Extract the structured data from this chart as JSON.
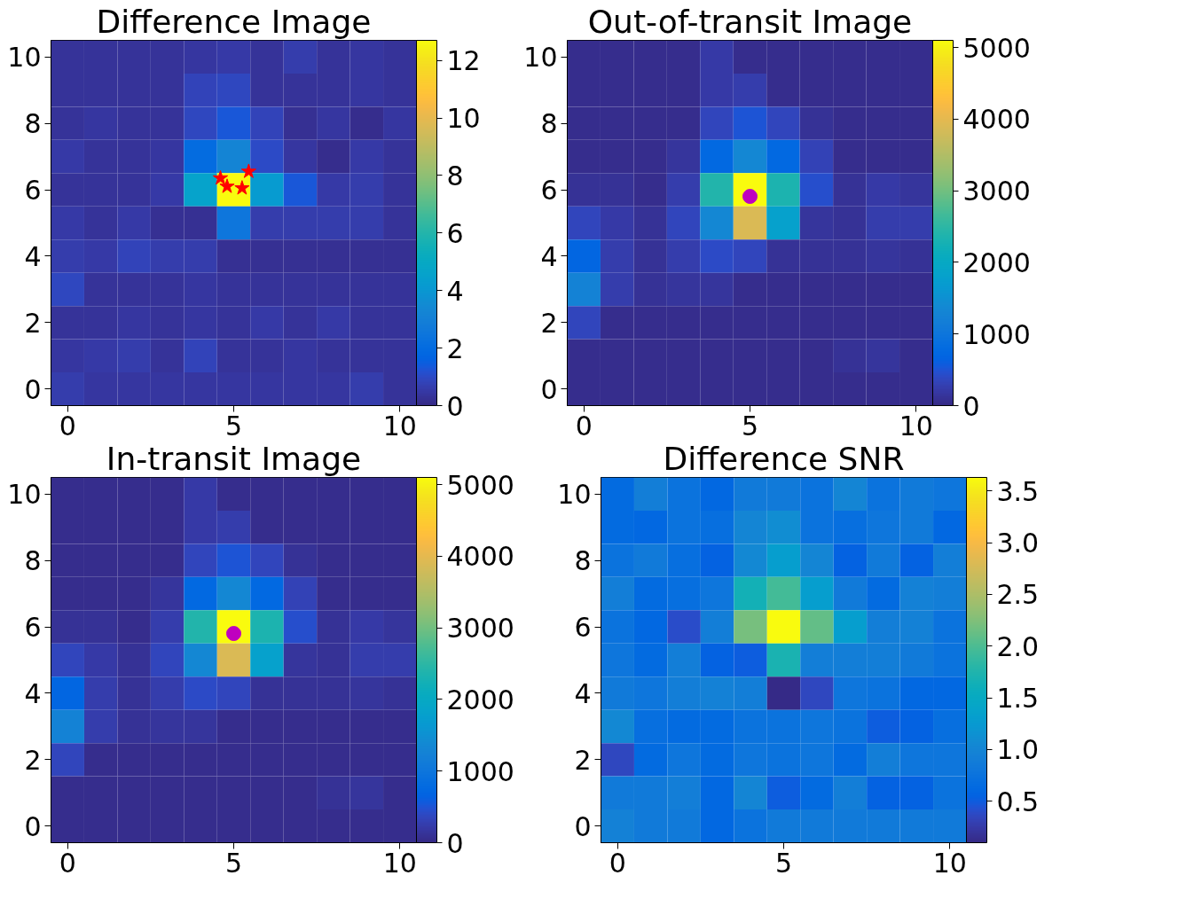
{
  "chart_data": [
    {
      "type": "heatmap",
      "title": "Difference Image",
      "xlim": [
        -0.5,
        10.5
      ],
      "xticks": [
        0,
        5,
        10
      ],
      "ylim": [
        -0.5,
        10.5
      ],
      "yticks": [
        0,
        2,
        4,
        6,
        8,
        10
      ],
      "clim": [
        0,
        12.7
      ],
      "cticks": [
        0,
        2,
        4,
        6,
        8,
        10,
        12
      ],
      "cells": [
        [
          0.3,
          0.3,
          0.3,
          0.3,
          0.4,
          0.5,
          0.3,
          0.6,
          0.3,
          0.4,
          0.3
        ],
        [
          0.3,
          0.3,
          0.3,
          0.3,
          0.8,
          0.9,
          0.3,
          0.3,
          0.3,
          0.4,
          0.3
        ],
        [
          0.3,
          0.4,
          0.3,
          0.3,
          0.9,
          1.3,
          0.8,
          0.2,
          0.4,
          0.1,
          0.4
        ],
        [
          0.5,
          0.3,
          0.3,
          0.4,
          2.0,
          3.2,
          1.0,
          0.4,
          0.1,
          0.5,
          0.3
        ],
        [
          0.3,
          0.3,
          0.3,
          0.5,
          4.6,
          12.7,
          4.2,
          1.3,
          0.5,
          0.6,
          0.3
        ],
        [
          0.5,
          0.3,
          0.5,
          0.2,
          0.2,
          2.5,
          0.6,
          0.6,
          0.6,
          0.6,
          0.3
        ],
        [
          0.6,
          0.5,
          0.8,
          0.6,
          0.6,
          0.2,
          0.2,
          0.2,
          0.2,
          0.2,
          0.2
        ],
        [
          0.9,
          0.3,
          0.3,
          0.3,
          0.4,
          0.3,
          0.3,
          0.3,
          0.3,
          0.3,
          0.3
        ],
        [
          0.3,
          0.3,
          0.4,
          0.3,
          0.4,
          0.3,
          0.5,
          0.3,
          0.5,
          0.3,
          0.3
        ],
        [
          0.4,
          0.5,
          0.6,
          0.3,
          0.8,
          0.3,
          0.3,
          0.4,
          0.3,
          0.3,
          0.3
        ],
        [
          0.6,
          0.4,
          0.4,
          0.4,
          0.4,
          0.4,
          0.4,
          0.4,
          0.4,
          0.6,
          0.3
        ]
      ],
      "series": [
        {
          "type": "scatter",
          "color": "#ff0000",
          "marker": "star",
          "x": [
            4.6,
            4.8,
            5.25,
            5.45
          ],
          "values": [
            6.35,
            6.1,
            6.05,
            6.55
          ]
        }
      ]
    },
    {
      "type": "heatmap",
      "title": "Out-of-transit Image",
      "xlim": [
        -0.5,
        10.5
      ],
      "xticks": [
        0,
        5,
        10
      ],
      "ylim": [
        -0.5,
        10.5
      ],
      "yticks": [
        0,
        2,
        4,
        6,
        8,
        10
      ],
      "clim": [
        0,
        5100
      ],
      "cticks": [
        0,
        1000,
        2000,
        3000,
        4000,
        5000
      ],
      "cells": [
        [
          50,
          50,
          50,
          50,
          200,
          50,
          50,
          50,
          50,
          50,
          50
        ],
        [
          50,
          50,
          50,
          50,
          200,
          250,
          50,
          50,
          50,
          50,
          50
        ],
        [
          50,
          50,
          50,
          50,
          350,
          500,
          350,
          100,
          50,
          50,
          50
        ],
        [
          50,
          50,
          50,
          150,
          750,
          1350,
          750,
          300,
          50,
          50,
          50
        ],
        [
          100,
          100,
          50,
          250,
          2400,
          5100,
          2350,
          450,
          100,
          200,
          150
        ],
        [
          350,
          200,
          100,
          350,
          1350,
          3900,
          1800,
          150,
          100,
          250,
          250
        ],
        [
          700,
          250,
          100,
          250,
          400,
          350,
          100,
          100,
          100,
          150,
          100
        ],
        [
          1250,
          250,
          100,
          150,
          150,
          50,
          50,
          50,
          50,
          50,
          50
        ],
        [
          350,
          50,
          50,
          50,
          50,
          50,
          50,
          50,
          50,
          50,
          50
        ],
        [
          50,
          50,
          50,
          50,
          50,
          50,
          50,
          50,
          100,
          150,
          50
        ],
        [
          50,
          50,
          50,
          50,
          50,
          50,
          50,
          50,
          50,
          50,
          50
        ]
      ],
      "series": [
        {
          "type": "scatter",
          "color": "#bf00bf",
          "marker": "circle",
          "x": [
            5.0
          ],
          "values": [
            5.8
          ]
        }
      ]
    },
    {
      "type": "heatmap",
      "title": "In-transit Image",
      "xlim": [
        -0.5,
        10.5
      ],
      "xticks": [
        0,
        5,
        10
      ],
      "ylim": [
        -0.5,
        10.5
      ],
      "yticks": [
        0,
        2,
        4,
        6,
        8,
        10
      ],
      "clim": [
        0,
        5100
      ],
      "cticks": [
        0,
        1000,
        2000,
        3000,
        4000,
        5000
      ],
      "cells": [
        [
          50,
          50,
          50,
          50,
          200,
          50,
          50,
          50,
          50,
          50,
          50
        ],
        [
          50,
          50,
          50,
          50,
          200,
          250,
          50,
          50,
          50,
          50,
          50
        ],
        [
          50,
          50,
          50,
          50,
          350,
          500,
          350,
          100,
          50,
          50,
          50
        ],
        [
          50,
          50,
          50,
          150,
          750,
          1350,
          750,
          300,
          50,
          50,
          50
        ],
        [
          100,
          100,
          50,
          250,
          2400,
          5100,
          2350,
          450,
          100,
          200,
          150
        ],
        [
          350,
          200,
          100,
          350,
          1350,
          3900,
          1800,
          150,
          100,
          250,
          250
        ],
        [
          700,
          250,
          100,
          250,
          400,
          350,
          100,
          100,
          100,
          150,
          100
        ],
        [
          1250,
          250,
          100,
          150,
          150,
          50,
          50,
          50,
          50,
          50,
          50
        ],
        [
          350,
          50,
          50,
          50,
          50,
          50,
          50,
          50,
          50,
          50,
          50
        ],
        [
          50,
          50,
          50,
          50,
          50,
          50,
          50,
          50,
          100,
          150,
          50
        ],
        [
          50,
          50,
          50,
          50,
          50,
          50,
          50,
          50,
          50,
          50,
          50
        ]
      ],
      "series": [
        {
          "type": "scatter",
          "color": "#bf00bf",
          "marker": "circle",
          "x": [
            5.0
          ],
          "values": [
            5.8
          ]
        }
      ]
    },
    {
      "type": "heatmap",
      "title": "Difference SNR",
      "xlim": [
        -0.5,
        10.5
      ],
      "xticks": [
        0,
        5,
        10
      ],
      "ylim": [
        -0.5,
        10.5
      ],
      "yticks": [
        0,
        2,
        4,
        6,
        8,
        10
      ],
      "clim": [
        0.1,
        3.63
      ],
      "cticks": [
        0.5,
        {
          "value": 1,
          "label": "1.0"
        },
        1.5,
        {
          "value": 2,
          "label": "2.0"
        },
        2.5,
        {
          "value": 3,
          "label": "3.0"
        },
        3.5
      ],
      "cells": [
        [
          0.65,
          0.9,
          0.75,
          0.6,
          0.85,
          0.85,
          0.75,
          1.0,
          0.75,
          0.85,
          0.8
        ],
        [
          0.65,
          0.6,
          0.75,
          0.7,
          1.0,
          1.1,
          0.75,
          0.7,
          0.8,
          0.85,
          0.6
        ],
        [
          0.75,
          0.85,
          0.7,
          0.55,
          1.05,
          1.3,
          1.0,
          0.55,
          0.85,
          0.55,
          0.9
        ],
        [
          0.9,
          0.65,
          0.7,
          0.8,
          1.65,
          1.95,
          1.3,
          0.85,
          0.65,
          0.95,
          0.9
        ],
        [
          0.75,
          0.6,
          0.4,
          0.9,
          2.2,
          3.63,
          2.1,
          1.3,
          0.9,
          0.95,
          0.75
        ],
        [
          0.8,
          0.65,
          0.9,
          0.55,
          0.5,
          1.7,
          0.9,
          0.9,
          0.9,
          0.85,
          0.75
        ],
        [
          0.85,
          0.8,
          0.9,
          0.95,
          0.9,
          0.1,
          0.35,
          0.8,
          0.75,
          0.6,
          0.6
        ],
        [
          1.05,
          0.7,
          0.65,
          0.65,
          0.75,
          0.75,
          0.8,
          0.75,
          0.5,
          0.55,
          0.7
        ],
        [
          0.35,
          0.65,
          0.8,
          0.65,
          0.8,
          0.75,
          0.8,
          0.65,
          0.9,
          0.8,
          0.8
        ],
        [
          0.85,
          0.85,
          0.9,
          0.6,
          1.0,
          0.5,
          0.65,
          0.9,
          0.55,
          0.55,
          0.75
        ],
        [
          0.95,
          0.85,
          0.85,
          0.6,
          0.75,
          0.85,
          0.85,
          0.85,
          0.85,
          0.85,
          0.85
        ]
      ]
    }
  ]
}
